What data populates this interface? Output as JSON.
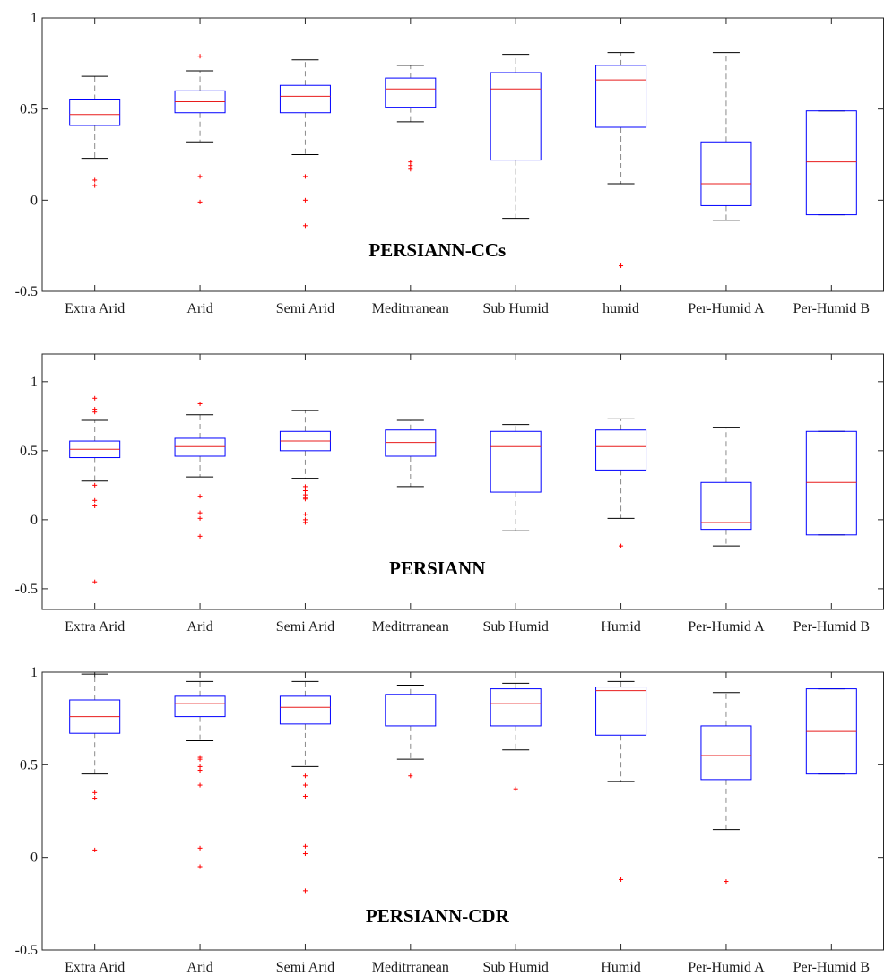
{
  "colors": {
    "box": "#0000ff",
    "median": "#e81c1c",
    "whisker": "#8a8a8a",
    "cap": "#000000",
    "outlier": "#ff0000",
    "axis": "#262626"
  },
  "chart_data": [
    {
      "type": "box",
      "title": "PERSIANN-CCs",
      "ylim": [
        -0.5,
        1
      ],
      "yticks": [
        -0.5,
        0,
        0.5,
        1
      ],
      "ytick_labels": [
        "-0.5",
        "0",
        "0.5",
        "1"
      ],
      "categories": [
        "Extra Arid",
        "Arid",
        "Semi Arid",
        "Meditrranean",
        "Sub Humid",
        "humid",
        "Per-Humid A",
        "Per-Humid B"
      ],
      "boxes": [
        {
          "whisker_low": 0.23,
          "q1": 0.41,
          "median": 0.47,
          "q3": 0.55,
          "whisker_high": 0.68,
          "outliers": [
            0.11,
            0.08
          ]
        },
        {
          "whisker_low": 0.32,
          "q1": 0.48,
          "median": 0.54,
          "q3": 0.6,
          "whisker_high": 0.71,
          "outliers": [
            0.79,
            0.13,
            -0.01
          ]
        },
        {
          "whisker_low": 0.25,
          "q1": 0.48,
          "median": 0.57,
          "q3": 0.63,
          "whisker_high": 0.77,
          "outliers": [
            0.13,
            0.0,
            -0.14
          ]
        },
        {
          "whisker_low": 0.43,
          "q1": 0.51,
          "median": 0.61,
          "q3": 0.67,
          "whisker_high": 0.74,
          "outliers": [
            0.21,
            0.19,
            0.17
          ]
        },
        {
          "whisker_low": -0.1,
          "q1": 0.22,
          "median": 0.61,
          "q3": 0.7,
          "whisker_high": 0.8,
          "outliers": []
        },
        {
          "whisker_low": 0.09,
          "q1": 0.4,
          "median": 0.66,
          "q3": 0.74,
          "whisker_high": 0.81,
          "outliers": [
            -0.36
          ]
        },
        {
          "whisker_low": -0.11,
          "q1": -0.03,
          "median": 0.09,
          "q3": 0.32,
          "whisker_high": 0.81,
          "outliers": []
        },
        {
          "whisker_low": -0.08,
          "q1": -0.08,
          "median": 0.21,
          "q3": 0.49,
          "whisker_high": 0.49,
          "outliers": []
        }
      ]
    },
    {
      "type": "box",
      "title": "PERSIANN",
      "ylim": [
        -0.65,
        1.2
      ],
      "yticks": [
        -0.5,
        0,
        0.5,
        1
      ],
      "ytick_labels": [
        "-0.5",
        "0",
        "0.5",
        "1"
      ],
      "categories": [
        "Extra Arid",
        "Arid",
        "Semi Arid",
        "Meditrranean",
        "Sub Humid",
        "Humid",
        "Per-Humid A",
        "Per-Humid B"
      ],
      "boxes": [
        {
          "whisker_low": 0.28,
          "q1": 0.45,
          "median": 0.51,
          "q3": 0.57,
          "whisker_high": 0.72,
          "outliers": [
            0.88,
            0.8,
            0.78,
            0.25,
            0.14,
            0.1,
            -0.45
          ]
        },
        {
          "whisker_low": 0.31,
          "q1": 0.46,
          "median": 0.53,
          "q3": 0.59,
          "whisker_high": 0.76,
          "outliers": [
            0.84,
            0.17,
            0.05,
            0.01,
            -0.12
          ]
        },
        {
          "whisker_low": 0.3,
          "q1": 0.5,
          "median": 0.57,
          "q3": 0.64,
          "whisker_high": 0.79,
          "outliers": [
            0.24,
            0.21,
            0.18,
            0.16,
            0.15,
            0.04,
            0.0,
            -0.02
          ]
        },
        {
          "whisker_low": 0.24,
          "q1": 0.46,
          "median": 0.56,
          "q3": 0.65,
          "whisker_high": 0.72,
          "outliers": []
        },
        {
          "whisker_low": -0.08,
          "q1": 0.2,
          "median": 0.53,
          "q3": 0.64,
          "whisker_high": 0.69,
          "outliers": []
        },
        {
          "whisker_low": 0.01,
          "q1": 0.36,
          "median": 0.53,
          "q3": 0.65,
          "whisker_high": 0.73,
          "outliers": [
            -0.19
          ]
        },
        {
          "whisker_low": -0.19,
          "q1": -0.07,
          "median": -0.02,
          "q3": 0.27,
          "whisker_high": 0.67,
          "outliers": []
        },
        {
          "whisker_low": -0.11,
          "q1": -0.11,
          "median": 0.27,
          "q3": 0.64,
          "whisker_high": 0.64,
          "outliers": []
        }
      ]
    },
    {
      "type": "box",
      "title": "PERSIANN-CDR",
      "ylim": [
        -0.5,
        1
      ],
      "yticks": [
        -0.5,
        0,
        0.5,
        1
      ],
      "ytick_labels": [
        "-0.5",
        "0",
        "0.5",
        "1"
      ],
      "categories": [
        "Extra Arid",
        "Arid",
        "Semi Arid",
        "Meditrranean",
        "Sub Humid",
        "Humid",
        "Per-Humid A",
        "Per-Humid B"
      ],
      "boxes": [
        {
          "whisker_low": 0.45,
          "q1": 0.67,
          "median": 0.76,
          "q3": 0.85,
          "whisker_high": 0.99,
          "outliers": [
            0.35,
            0.32,
            0.04
          ]
        },
        {
          "whisker_low": 0.63,
          "q1": 0.76,
          "median": 0.83,
          "q3": 0.87,
          "whisker_high": 0.95,
          "outliers": [
            0.54,
            0.53,
            0.49,
            0.47,
            0.39,
            0.05,
            -0.05
          ]
        },
        {
          "whisker_low": 0.49,
          "q1": 0.72,
          "median": 0.81,
          "q3": 0.87,
          "whisker_high": 0.95,
          "outliers": [
            0.44,
            0.39,
            0.33,
            0.06,
            0.02,
            -0.18
          ]
        },
        {
          "whisker_low": 0.53,
          "q1": 0.71,
          "median": 0.78,
          "q3": 0.88,
          "whisker_high": 0.93,
          "outliers": [
            0.44
          ]
        },
        {
          "whisker_low": 0.58,
          "q1": 0.71,
          "median": 0.83,
          "q3": 0.91,
          "whisker_high": 0.94,
          "outliers": [
            0.37
          ]
        },
        {
          "whisker_low": 0.41,
          "q1": 0.66,
          "median": 0.9,
          "q3": 0.92,
          "whisker_high": 0.95,
          "outliers": [
            -0.12
          ]
        },
        {
          "whisker_low": 0.15,
          "q1": 0.42,
          "median": 0.55,
          "q3": 0.71,
          "whisker_high": 0.89,
          "outliers": [
            -0.13
          ]
        },
        {
          "whisker_low": 0.45,
          "q1": 0.45,
          "median": 0.68,
          "q3": 0.91,
          "whisker_high": 0.91,
          "outliers": []
        }
      ]
    }
  ]
}
